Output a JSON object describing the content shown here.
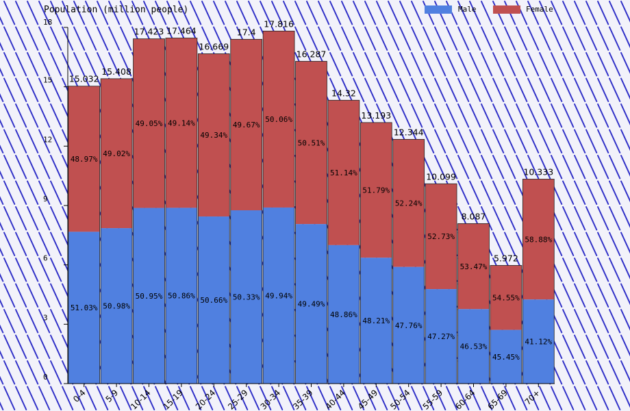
{
  "chart_data": {
    "type": "bar",
    "stacked": true,
    "title": "Population (million people)",
    "xlabel": "",
    "ylabel": "",
    "ylim": [
      0,
      18
    ],
    "yticks": [
      0,
      3,
      6,
      9,
      12,
      15,
      18
    ],
    "grid": false,
    "legend_position": "top-right",
    "categories": [
      "0-4",
      "5-9",
      "10-14",
      "15-19",
      "20-24",
      "25-29",
      "30-34",
      "35-39",
      "40-44",
      "45-49",
      "50-54",
      "55-59",
      "60-64",
      "65-69",
      "70+"
    ],
    "totals": [
      15.032,
      15.408,
      17.423,
      17.464,
      16.669,
      17.4,
      17.816,
      16.287,
      14.32,
      13.193,
      12.344,
      10.099,
      8.087,
      5.972,
      10.333
    ],
    "series": [
      {
        "name": "Male",
        "color": "#5080e0",
        "percent_labels": [
          "51.03%",
          "50.98%",
          "50.95%",
          "50.86%",
          "50.66%",
          "50.33%",
          "49.94%",
          "49.49%",
          "48.86%",
          "48.21%",
          "47.76%",
          "47.27%",
          "46.53%",
          "45.45%",
          "41.12%"
        ]
      },
      {
        "name": "Female",
        "color": "#c05050",
        "percent_labels": [
          "48.97%",
          "49.02%",
          "49.05%",
          "49.14%",
          "49.34%",
          "49.67%",
          "50.06%",
          "50.51%",
          "51.14%",
          "51.79%",
          "52.24%",
          "52.73%",
          "53.47%",
          "54.55%",
          "58.88%"
        ]
      }
    ]
  },
  "colors": {
    "background_stripe": "#f2f2fa",
    "stripe_line": "#3030c8",
    "axis": "#000000"
  }
}
